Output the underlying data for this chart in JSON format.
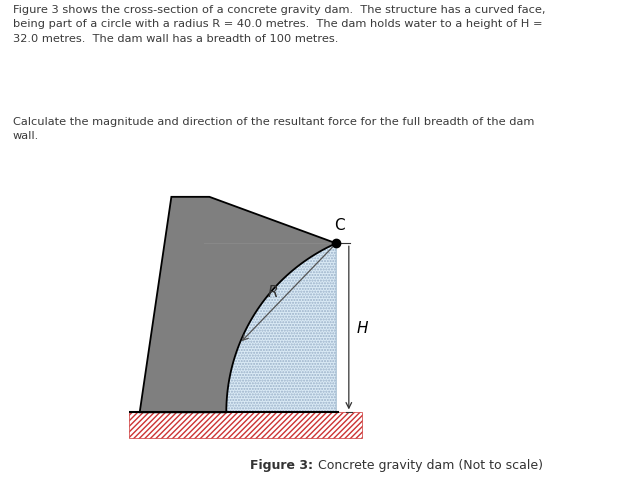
{
  "text_para1": "Figure 3 shows the cross-section of a concrete gravity dam.  The structure has a curved face,\nbeing part of a circle with a radius R = 40.0 metres.  The dam holds water to a height of H =\n32.0 metres.  The dam wall has a breadth of 100 metres.",
  "text_para2": "Calculate the magnitude and direction of the resultant force for the full breadth of the dam\nwall.",
  "caption_bold": "Figure 3:",
  "caption_normal": " Concrete gravity dam (Not to scale)",
  "label_R": "R",
  "label_C": "C",
  "label_H": "H",
  "dam_color": "#7f7f7f",
  "dam_edge_color": "#000000",
  "water_color": "#daeaf5",
  "hatch_color": "#cc3333",
  "bg_color": "#ffffff",
  "text_color": "#3a3a3a",
  "dim_line_color": "#333333"
}
